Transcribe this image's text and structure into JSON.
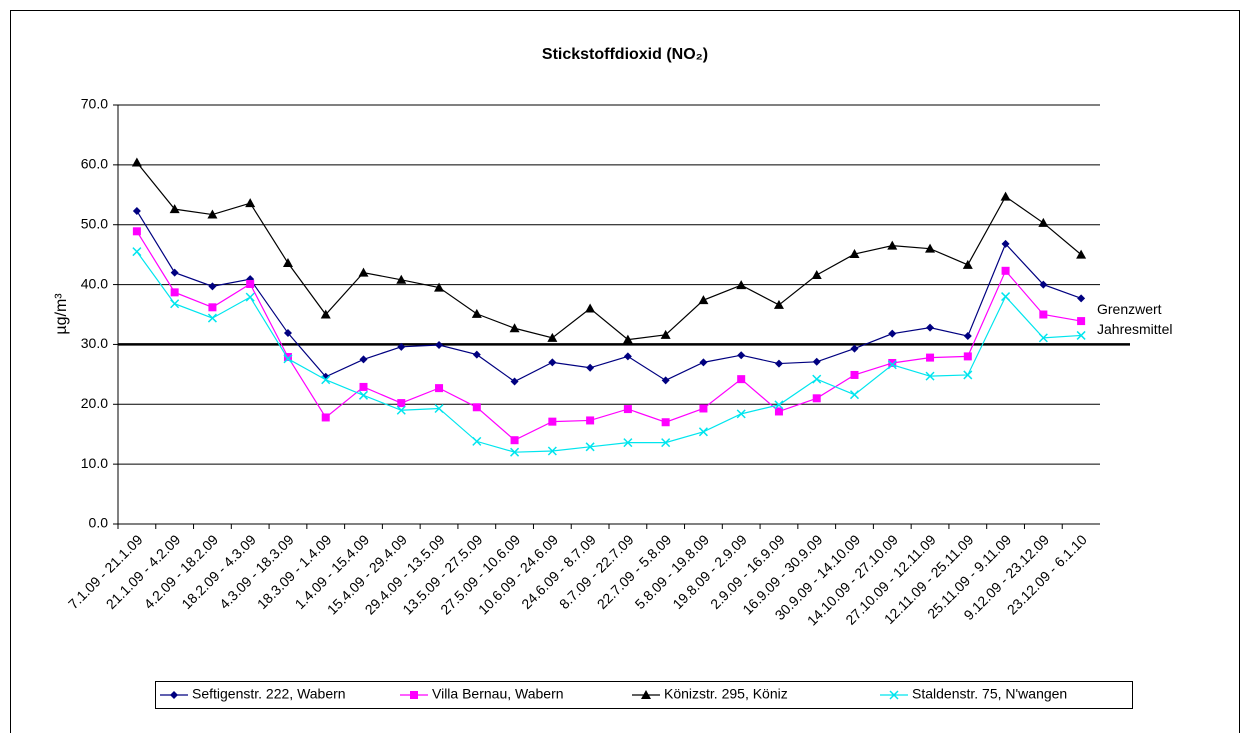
{
  "chart_data": {
    "type": "line",
    "title": "Stickstoffdioxid (NO₂)",
    "y_label": "µg/m³",
    "categories": [
      "7.1.09 - 21.1.09",
      "21.1.09 - 4.2.09",
      "4.2.09 - 18.2.09",
      "18.2.09 - 4.3.09",
      "4.3.09 - 18.3.09",
      "18.3.09 - 1.4.09",
      "1.4.09 - 15.4.09",
      "15.4.09 - 29.4.09",
      "29.4.09 - 13.5.09",
      "13.5.09 - 27.5.09",
      "27.5.09 - 10.6.09",
      "10.6.09 - 24.6.09",
      "24.6.09 - 8.7.09",
      "8.7.09 - 22.7.09",
      "22.7.09 - 5.8.09",
      "5.8.09 - 19.8.09",
      "19.8.09 - 2.9.09",
      "2.9.09 - 16.9.09",
      "16.9.09 - 30.9.09",
      "30.9.09 - 14.10.09",
      "14.10.09 - 27.10.09",
      "27.10.09 - 12.11.09",
      "12.11.09 - 25.11.09",
      "25.11.09 - 9.11.09",
      "9.12.09 - 23.12.09",
      "23.12.09 - 6.1.10"
    ],
    "series": [
      {
        "name": "Seftigenstr. 222, Wabern",
        "color": "#000080",
        "marker": "diamond",
        "values": [
          52.3,
          42,
          39.7,
          40.9,
          31.9,
          24.6,
          27.5,
          29.6,
          29.9,
          28.3,
          23.8,
          27,
          26.1,
          28,
          24,
          27,
          28.2,
          26.8,
          27.1,
          29.3,
          31.8,
          32.8,
          31.4,
          46.8,
          40,
          37.7
        ]
      },
      {
        "name": "Villa Bernau, Wabern",
        "color": "#ff00ff",
        "marker": "square",
        "values": [
          48.9,
          38.7,
          36.2,
          40.1,
          27.9,
          17.8,
          22.9,
          20.2,
          22.7,
          19.5,
          14,
          17.1,
          17.3,
          19.2,
          17,
          19.3,
          24.2,
          18.8,
          21,
          24.9,
          26.9,
          27.8,
          28,
          42.3,
          35,
          33.9
        ]
      },
      {
        "name": "Könizstr. 295, Köniz",
        "color": "#000000",
        "marker": "triangle",
        "values": [
          60.4,
          52.6,
          51.7,
          53.6,
          43.6,
          35,
          42,
          40.8,
          39.5,
          35.1,
          32.7,
          31.1,
          36,
          30.8,
          31.6,
          37.4,
          39.9,
          36.6,
          41.6,
          45.1,
          46.5,
          46,
          43.3,
          54.7,
          50.3,
          45
        ]
      },
      {
        "name": "Staldenstr. 75, N'wangen",
        "color": "#00e5ee",
        "marker": "x",
        "values": [
          45.5,
          36.8,
          34.4,
          37.9,
          27.6,
          24.1,
          21.5,
          19,
          19.3,
          13.8,
          12,
          12.2,
          12.9,
          13.6,
          13.6,
          15.4,
          18.4,
          19.9,
          24.2,
          21.6,
          26.6,
          24.7,
          24.9,
          38,
          31.1,
          31.5
        ]
      }
    ],
    "threshold": {
      "value": 30,
      "label": [
        "Grenzwert",
        "Jahresmittel"
      ]
    },
    "ylim": [
      0,
      70
    ],
    "yticks": [
      {
        "value": 0,
        "label": "0.0"
      },
      {
        "value": 10,
        "label": "10.0"
      },
      {
        "value": 20,
        "label": "20.0"
      },
      {
        "value": 30,
        "label": "30.0"
      },
      {
        "value": 40,
        "label": "40.0"
      },
      {
        "value": 50,
        "label": "50.0"
      },
      {
        "value": 60,
        "label": "60.0"
      },
      {
        "value": 70,
        "label": "70.0"
      }
    ],
    "grid": true,
    "legend": "bottom"
  }
}
